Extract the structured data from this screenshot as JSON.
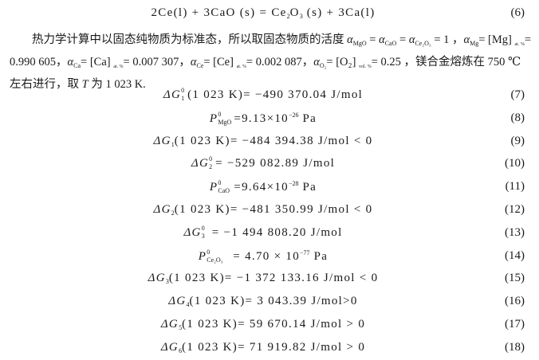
{
  "eq6": {
    "text_a": "2Ce(l) +   3CaO (s) = Ce",
    "sub1": "2",
    "text_b": "O",
    "sub2": "3",
    "text_c": " (s) +   3Ca(l)",
    "num": "(6)"
  },
  "paragraph": {
    "l1_a": "热力学计算中以固态纯物质为标准态，所以取固态物质的活度 ",
    "a": "α",
    "s_mgo": "MgO",
    "s_cao": "CaO",
    "s_ce2o3": "Ce₂O₃",
    "s_mg": "Mg",
    "s_ca": "Ca",
    "s_ce": "Ce",
    "s_o2": "O₂",
    "eq1": " = ",
    "one": " = 1 ，",
    "mg_br": "= [Mg] ",
    "at": "at. %",
    "vol": "vol. %",
    "eqsign": "=",
    "l2_a": "0.990 605，",
    "ca_br": "= [Ca] ",
    "ca_val": "= 0.007 307，",
    "ce_br": "= [Ce] ",
    "ce_val": "= 0.002 087，",
    "o2_br": "= [O₂] ",
    "o2_val": "= 0.25 ，镁合金熔炼在 750 ℃",
    "l3_a": "左右进行，取 ",
    "T": "T",
    "l3_b": " 为 1 023 K."
  },
  "equations": [
    {
      "sym": "ΔG",
      "sup": "0",
      "sub": "1",
      "text": "(1 023 K)= −490 370.04 J/mol",
      "num": "(7)"
    },
    {
      "sym": "P",
      "sup": "0",
      "sub": "MgO",
      "text": "=9.13×10",
      "exp": "−26",
      "tail": " Pa",
      "num": "(8)"
    },
    {
      "sym": "ΔG",
      "sub": "1",
      "text": "(1 023 K)= −484 394.38 J/mol < 0",
      "num": "(9)"
    },
    {
      "sym": "ΔG",
      "sup": "0",
      "sub": "2",
      "text": "= −529 082.89 J/mol",
      "num": "(10)"
    },
    {
      "sym": "P",
      "sup": "0",
      "sub": "CaO",
      "text": "=9.64×10",
      "exp": "−28",
      "tail": " Pa",
      "num": "(11)"
    },
    {
      "sym": "ΔG",
      "sub": "2",
      "text": "(1 023 K)= −481 350.99 J/mol < 0",
      "num": "(12)"
    },
    {
      "sym": "ΔG",
      "sup": "0",
      "sub": "3",
      "text": " = −1 494 808.20 J/mol",
      "num": "(13)"
    },
    {
      "sym": "P",
      "sup": "0",
      "sub": "Ce₂O₃",
      "text": " = 4.70 × 10",
      "exp": "−77",
      "tail": " Pa",
      "num": "(14)"
    },
    {
      "sym": "ΔG",
      "sub": "3",
      "text": "(1 023 K)= −1 372 133.16 J/mol < 0",
      "num": "(15)"
    },
    {
      "sym": "ΔG",
      "sub": "4",
      "text": "(1 023 K)= 3 043.39 J/mol>0",
      "num": "(16)"
    },
    {
      "sym": "ΔG",
      "sub": "5",
      "text": "(1 023 K)= 59 670.14 J/mol > 0",
      "num": "(17)"
    },
    {
      "sym": "ΔG",
      "sub": "6",
      "text": "(1 023 K)= 71 919.82 J/mol > 0",
      "num": "(18)"
    }
  ]
}
